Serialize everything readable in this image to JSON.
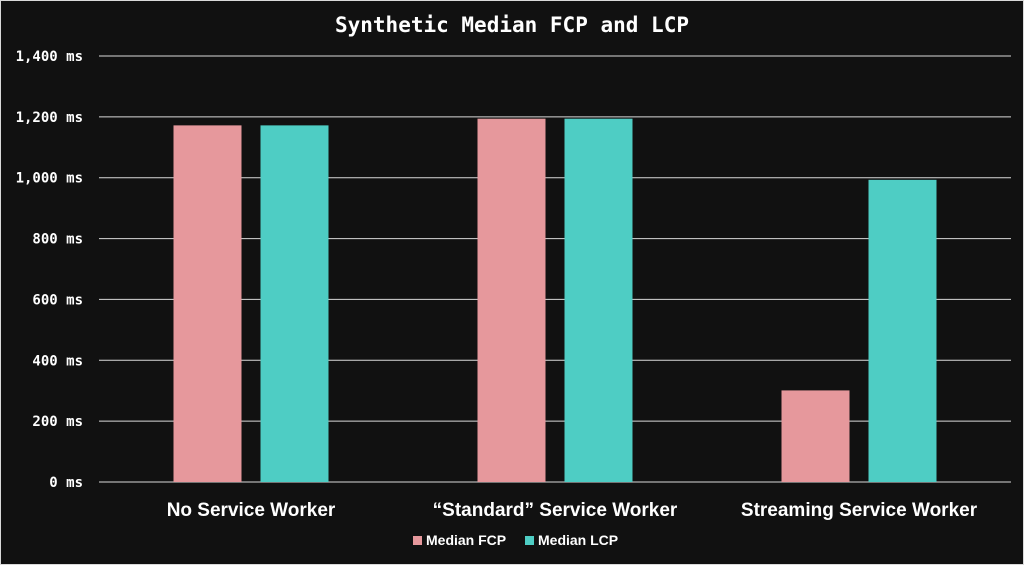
{
  "chart_data": {
    "type": "bar",
    "title": "Synthetic Median FCP and LCP",
    "xlabel": "",
    "ylabel": "",
    "categories": [
      "No Service Worker",
      "“Standard” Service Worker",
      "Streaming Service Worker"
    ],
    "series": [
      {
        "name": "Median FCP",
        "color": "#e6989c",
        "values": [
          1172,
          1194,
          301
        ]
      },
      {
        "name": "Median LCP",
        "color": "#4ecdc4",
        "values": [
          1172,
          1194,
          993
        ]
      }
    ],
    "ylim": [
      0,
      1400
    ],
    "yticks": [
      {
        "value": 0,
        "label": "0 ms"
      },
      {
        "value": 200,
        "label": "200 ms"
      },
      {
        "value": 400,
        "label": "400 ms"
      },
      {
        "value": 600,
        "label": "600 ms"
      },
      {
        "value": 800,
        "label": "800 ms"
      },
      {
        "value": 1000,
        "label": "1,000 ms"
      },
      {
        "value": 1200,
        "label": "1,200 ms"
      },
      {
        "value": 1400,
        "label": "1,400 ms"
      }
    ],
    "grid": true,
    "legend_position": "bottom-center",
    "colors": {
      "background": "#111111",
      "gridline": "#d9d9d9",
      "text": "#ffffff"
    }
  }
}
